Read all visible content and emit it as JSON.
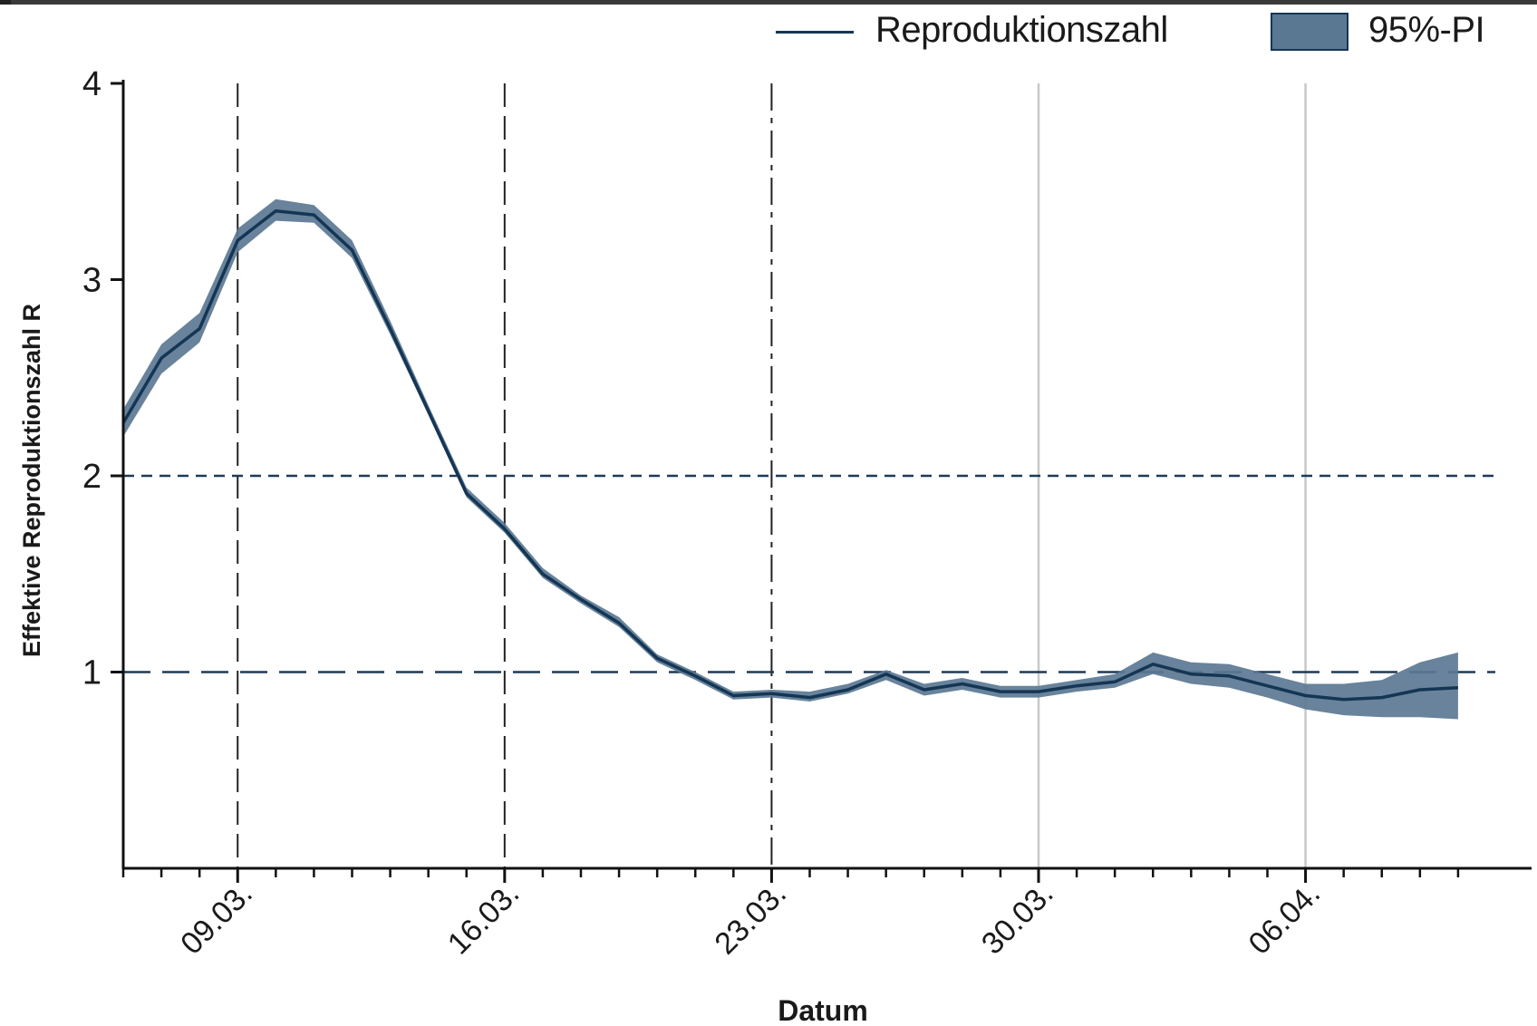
{
  "chart_data": {
    "type": "line",
    "xlabel": "Datum",
    "ylabel": "Effektive Reproduktionszahl R",
    "ylim": [
      0,
      4
    ],
    "yticks": [
      1,
      2,
      3,
      4
    ],
    "xlim": [
      "06.03.",
      "10.04."
    ],
    "xticks": [
      "09.03.",
      "16.03.",
      "23.03.",
      "30.03.",
      "06.04."
    ],
    "minor_x_ticks": "daily",
    "grid": false,
    "legend_position": "top-right",
    "colors": {
      "line": "#143654",
      "band": "#5b7893",
      "reference": "#1f3a56",
      "vline_dark": "#222222",
      "vline_light": "#c8c8c8"
    },
    "reference_lines": [
      {
        "y": 2,
        "style": "short-dash"
      },
      {
        "y": 1,
        "style": "long-dash"
      }
    ],
    "vertical_lines": [
      {
        "x": "09.03.",
        "style": "dashed"
      },
      {
        "x": "16.03.",
        "style": "dashed"
      },
      {
        "x": "23.03.",
        "style": "dash-dot"
      },
      {
        "x": "30.03.",
        "style": "solid-light"
      },
      {
        "x": "06.04.",
        "style": "solid-light"
      }
    ],
    "series": [
      {
        "name": "Reproduktionszahl",
        "type": "line",
        "x": [
          "06.03.",
          "07.03.",
          "08.03.",
          "09.03.",
          "10.03.",
          "11.03.",
          "12.03.",
          "13.03.",
          "14.03.",
          "15.03.",
          "16.03.",
          "17.03.",
          "18.03.",
          "19.03.",
          "20.03.",
          "21.03.",
          "22.03.",
          "23.03.",
          "24.03.",
          "25.03.",
          "26.03.",
          "27.03.",
          "28.03.",
          "29.03.",
          "30.03.",
          "31.03.",
          "01.04.",
          "02.04.",
          "03.04.",
          "04.04.",
          "05.04.",
          "06.04.",
          "07.04.",
          "08.04.",
          "09.04.",
          "10.04."
        ],
        "values": [
          2.27,
          2.6,
          2.75,
          3.2,
          3.35,
          3.33,
          3.15,
          2.75,
          2.33,
          1.91,
          1.73,
          1.5,
          1.37,
          1.25,
          1.07,
          0.98,
          0.88,
          0.89,
          0.87,
          0.91,
          0.99,
          0.91,
          0.94,
          0.9,
          0.9,
          0.93,
          0.95,
          1.04,
          0.99,
          0.98,
          0.93,
          0.88,
          0.86,
          0.87,
          0.91,
          0.92
        ]
      },
      {
        "name": "95%-PI",
        "type": "band",
        "lower": [
          2.2,
          2.52,
          2.68,
          3.14,
          3.3,
          3.29,
          3.11,
          2.72,
          2.31,
          1.89,
          1.71,
          1.48,
          1.35,
          1.23,
          1.05,
          0.96,
          0.86,
          0.87,
          0.85,
          0.89,
          0.96,
          0.88,
          0.91,
          0.87,
          0.87,
          0.9,
          0.92,
          0.99,
          0.94,
          0.92,
          0.87,
          0.81,
          0.78,
          0.77,
          0.77,
          0.76
        ],
        "upper": [
          2.34,
          2.67,
          2.83,
          3.26,
          3.41,
          3.38,
          3.2,
          2.79,
          2.36,
          1.94,
          1.76,
          1.53,
          1.39,
          1.28,
          1.09,
          1.0,
          0.9,
          0.91,
          0.9,
          0.94,
          1.01,
          0.94,
          0.97,
          0.93,
          0.93,
          0.96,
          0.99,
          1.1,
          1.05,
          1.04,
          0.99,
          0.94,
          0.94,
          0.96,
          1.05,
          1.1
        ]
      }
    ]
  }
}
